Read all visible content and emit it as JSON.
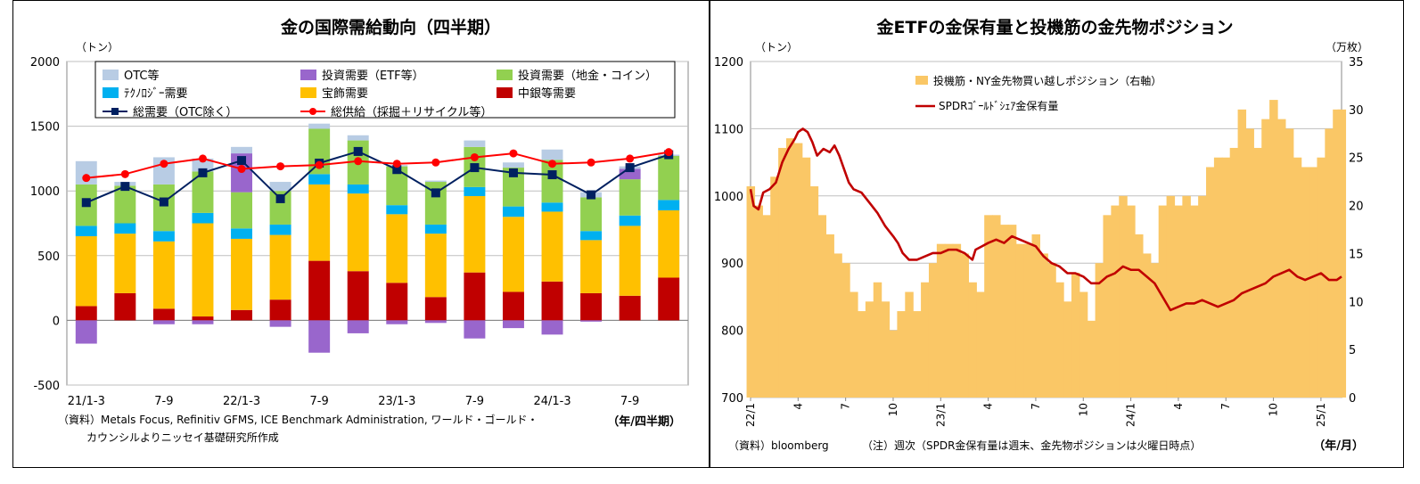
{
  "chart_data": [
    {
      "type": "bar",
      "title": "金の国際需給動向（四半期）",
      "unit_label": "（トン）",
      "xlabel": "（年/四半期）",
      "source_note": [
        "（資料）Metals Focus, Refinitiv GFMS, ICE Benchmark Administration, ワールド・ゴールド・",
        "カウンシルよりニッセイ基礎研究所作成"
      ],
      "ylim": [
        -500,
        2000
      ],
      "y_ticks": [
        -500,
        0,
        500,
        1000,
        1500,
        2000
      ],
      "tick_labels": [
        "21/1-3",
        "7-9",
        "22/1-3",
        "7-9",
        "23/1-3",
        "7-9",
        "24/1-3",
        "7-9"
      ],
      "tick_positions": [
        0,
        2,
        4,
        6,
        8,
        10,
        12,
        14
      ],
      "categories": [
        "21/1-3",
        "21/4-6",
        "21/7-9",
        "21/10-12",
        "22/1-3",
        "22/4-6",
        "22/7-9",
        "22/10-12",
        "23/1-3",
        "23/4-6",
        "23/7-9",
        "23/10-12",
        "24/1-3",
        "24/4-6",
        "24/7-9",
        "24/10-12"
      ],
      "stack_order": [
        "中銀等需要",
        "宝飾需要",
        "テクノロジー需要",
        "投資需要（地金・コイン）",
        "投資需要（ETF等）",
        "OTC等"
      ],
      "series": [
        {
          "name": "OTC等",
          "kind": "bar",
          "color": "#b8cce4",
          "values": [
            180,
            30,
            210,
            100,
            50,
            70,
            40,
            40,
            10,
            10,
            50,
            40,
            80,
            40,
            20,
            10
          ]
        },
        {
          "name": "投資需要（ETF等）",
          "kind": "bar",
          "color": "#9966cc",
          "values": [
            -180,
            0,
            -30,
            -30,
            300,
            -50,
            -250,
            -100,
            -30,
            -20,
            -140,
            -60,
            -110,
            -10,
            80,
            0
          ]
        },
        {
          "name": "投資需要（地金・コイン）",
          "kind": "bar",
          "color": "#92d050",
          "values": [
            320,
            290,
            360,
            320,
            280,
            260,
            350,
            340,
            300,
            330,
            310,
            300,
            330,
            260,
            280,
            340
          ]
        },
        {
          "name": "テクノロジー需要",
          "kind": "bar",
          "color": "#00b0f0",
          "values": [
            80,
            80,
            80,
            80,
            80,
            80,
            80,
            70,
            70,
            70,
            70,
            80,
            70,
            70,
            80,
            80
          ]
        },
        {
          "name": "宝飾需要",
          "kind": "bar",
          "color": "#ffc000",
          "values": [
            540,
            460,
            520,
            720,
            550,
            500,
            590,
            600,
            530,
            490,
            590,
            580,
            540,
            410,
            540,
            520
          ]
        },
        {
          "name": "中銀等需要",
          "kind": "bar",
          "color": "#c00000",
          "values": [
            110,
            210,
            90,
            30,
            80,
            160,
            460,
            380,
            290,
            180,
            370,
            220,
            300,
            210,
            190,
            330
          ]
        },
        {
          "name": "総需要（OTC除く）",
          "kind": "line",
          "color": "#002060",
          "values": [
            910,
            1035,
            915,
            1140,
            1235,
            940,
            1215,
            1305,
            1165,
            985,
            1180,
            1140,
            1125,
            970,
            1180,
            1280
          ]
        },
        {
          "name": "総供給（採掘＋リサイクル等）",
          "kind": "line",
          "color": "#ff0000",
          "values": [
            1100,
            1130,
            1210,
            1250,
            1170,
            1190,
            1200,
            1230,
            1210,
            1220,
            1260,
            1290,
            1210,
            1220,
            1250,
            1300
          ]
        }
      ]
    },
    {
      "type": "area",
      "title": "金ETFの金保有量と投機筋の金先物ポジション",
      "unit_left": "（トン）",
      "unit_right": "（万枚）",
      "xlabel": "（年/月）",
      "source_note": "（資料）bloomberg",
      "footnote": "（注）週次（SPDR金保有量は週末、金先物ポジションは火曜日時点）",
      "ylim_left": [
        700,
        1200
      ],
      "y_ticks_left": [
        700,
        800,
        900,
        1000,
        1100,
        1200
      ],
      "ylim_right": [
        0,
        35
      ],
      "y_ticks_right": [
        0,
        5,
        10,
        15,
        20,
        25,
        30,
        35
      ],
      "x_tick_labels": [
        "22/1",
        "4",
        "7",
        "10",
        "23/1",
        "4",
        "7",
        "10",
        "24/1",
        "4",
        "7",
        "10",
        "25/1"
      ],
      "x_tick_positions": [
        0,
        3,
        6,
        9,
        12,
        15,
        18,
        21,
        24,
        27,
        30,
        33,
        36
      ],
      "x_range_months": [
        0,
        37.3
      ],
      "series": [
        {
          "name": "投機筋・NY金先物買い越しポジション（右軸）",
          "axis": "right",
          "color": "#fac766",
          "points": [
            [
              0,
              22
            ],
            [
              0.5,
              20
            ],
            [
              1,
              19
            ],
            [
              1.5,
              23
            ],
            [
              2,
              26
            ],
            [
              2.5,
              27
            ],
            [
              3,
              26.5
            ],
            [
              3.5,
              25
            ],
            [
              4,
              22
            ],
            [
              4.5,
              19
            ],
            [
              5,
              17
            ],
            [
              5.5,
              15
            ],
            [
              6,
              14
            ],
            [
              6.5,
              11
            ],
            [
              7,
              9
            ],
            [
              7.5,
              10
            ],
            [
              8,
              12
            ],
            [
              8.5,
              10
            ],
            [
              9,
              7
            ],
            [
              9.5,
              9
            ],
            [
              10,
              11
            ],
            [
              10.5,
              9
            ],
            [
              11,
              12
            ],
            [
              11.5,
              14
            ],
            [
              12,
              16
            ],
            [
              12.5,
              16
            ],
            [
              13,
              16
            ],
            [
              13.5,
              15
            ],
            [
              14,
              12
            ],
            [
              14.5,
              11
            ],
            [
              15,
              19
            ],
            [
              15.5,
              19
            ],
            [
              16,
              18
            ],
            [
              16.5,
              18
            ],
            [
              17,
              16
            ],
            [
              17.5,
              16
            ],
            [
              18,
              17
            ],
            [
              18.5,
              15
            ],
            [
              19,
              14
            ],
            [
              19.5,
              12
            ],
            [
              20,
              10
            ],
            [
              20.5,
              13
            ],
            [
              21,
              11
            ],
            [
              21.5,
              8
            ],
            [
              22,
              14
            ],
            [
              22.5,
              19
            ],
            [
              23,
              20
            ],
            [
              23.5,
              21
            ],
            [
              24,
              20
            ],
            [
              24.5,
              17
            ],
            [
              25,
              15
            ],
            [
              25.5,
              14
            ],
            [
              26,
              20
            ],
            [
              26.5,
              21
            ],
            [
              27,
              20
            ],
            [
              27.5,
              21
            ],
            [
              28,
              20
            ],
            [
              28.5,
              21
            ],
            [
              29,
              24
            ],
            [
              29.5,
              25
            ],
            [
              30,
              25
            ],
            [
              30.5,
              26
            ],
            [
              31,
              30
            ],
            [
              31.5,
              28
            ],
            [
              32,
              26
            ],
            [
              32.5,
              29
            ],
            [
              33,
              31
            ],
            [
              33.5,
              29
            ],
            [
              34,
              28
            ],
            [
              34.5,
              25
            ],
            [
              35,
              24
            ],
            [
              35.5,
              24
            ],
            [
              36,
              25
            ],
            [
              36.5,
              28
            ],
            [
              37,
              30
            ],
            [
              37.3,
              30
            ]
          ]
        },
        {
          "name": "SPDRｺﾞｰﾙﾄﾞｼｪｱ金保有量",
          "axis": "left",
          "color": "#c00000",
          "points": [
            [
              0,
              1010
            ],
            [
              0.2,
              985
            ],
            [
              0.5,
              980
            ],
            [
              0.8,
              1005
            ],
            [
              1.2,
              1010
            ],
            [
              1.6,
              1020
            ],
            [
              2,
              1050
            ],
            [
              2.4,
              1070
            ],
            [
              2.8,
              1085
            ],
            [
              3,
              1095
            ],
            [
              3.3,
              1100
            ],
            [
              3.6,
              1095
            ],
            [
              3.9,
              1080
            ],
            [
              4.2,
              1060
            ],
            [
              4.6,
              1070
            ],
            [
              5,
              1065
            ],
            [
              5.3,
              1075
            ],
            [
              5.6,
              1060
            ],
            [
              5.9,
              1040
            ],
            [
              6.2,
              1020
            ],
            [
              6.5,
              1010
            ],
            [
              7,
              1005
            ],
            [
              7.5,
              990
            ],
            [
              8,
              975
            ],
            [
              8.5,
              955
            ],
            [
              9,
              940
            ],
            [
              9.3,
              930
            ],
            [
              9.6,
              915
            ],
            [
              10,
              905
            ],
            [
              10.5,
              905
            ],
            [
              11,
              910
            ],
            [
              11.5,
              915
            ],
            [
              12,
              915
            ],
            [
              12.5,
              920
            ],
            [
              13,
              920
            ],
            [
              13.5,
              915
            ],
            [
              14,
              905
            ],
            [
              14.2,
              920
            ],
            [
              14.6,
              925
            ],
            [
              15,
              930
            ],
            [
              15.5,
              935
            ],
            [
              16,
              930
            ],
            [
              16.5,
              940
            ],
            [
              17,
              935
            ],
            [
              17.5,
              930
            ],
            [
              18,
              925
            ],
            [
              18.5,
              910
            ],
            [
              19,
              900
            ],
            [
              19.5,
              895
            ],
            [
              20,
              885
            ],
            [
              20.5,
              885
            ],
            [
              21,
              880
            ],
            [
              21.5,
              870
            ],
            [
              22,
              870
            ],
            [
              22.5,
              880
            ],
            [
              23,
              885
            ],
            [
              23.5,
              895
            ],
            [
              24,
              890
            ],
            [
              24.5,
              890
            ],
            [
              25,
              880
            ],
            [
              25.5,
              870
            ],
            [
              26,
              850
            ],
            [
              26.5,
              830
            ],
            [
              27,
              835
            ],
            [
              27.5,
              840
            ],
            [
              28,
              840
            ],
            [
              28.5,
              845
            ],
            [
              29,
              840
            ],
            [
              29.5,
              835
            ],
            [
              30,
              840
            ],
            [
              30.5,
              845
            ],
            [
              31,
              855
            ],
            [
              31.5,
              860
            ],
            [
              32,
              865
            ],
            [
              32.5,
              870
            ],
            [
              33,
              880
            ],
            [
              33.5,
              885
            ],
            [
              34,
              890
            ],
            [
              34.5,
              880
            ],
            [
              35,
              875
            ],
            [
              35.5,
              880
            ],
            [
              36,
              885
            ],
            [
              36.5,
              875
            ],
            [
              37,
              875
            ],
            [
              37.3,
              880
            ]
          ]
        }
      ]
    }
  ]
}
